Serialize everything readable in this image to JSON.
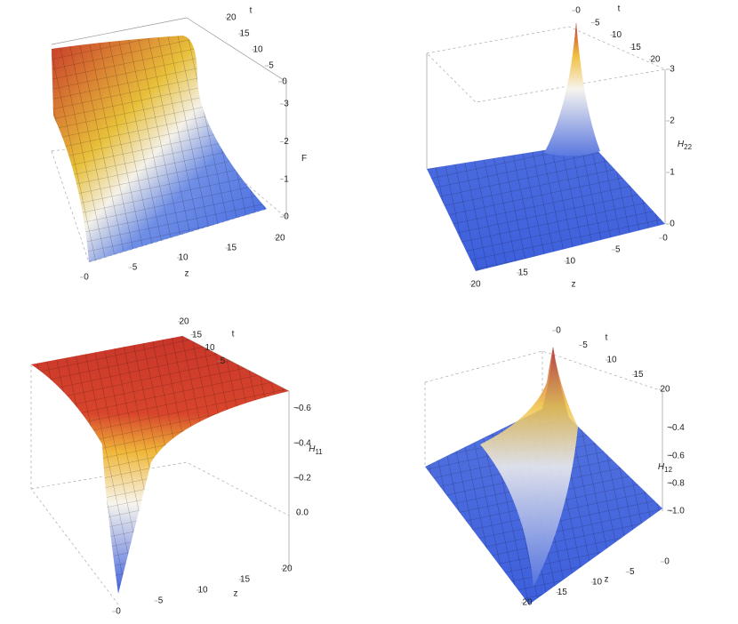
{
  "chart_data": [
    {
      "type": "surface",
      "xlabel": "z",
      "ylabel": "t",
      "zlabel": "F",
      "xlim": [
        0,
        20
      ],
      "xticks": [
        0,
        5,
        10,
        15,
        20
      ],
      "ylim": [
        0,
        20
      ],
      "yticks": [
        0,
        5,
        10,
        15,
        20
      ],
      "zlim": [
        0,
        3
      ],
      "zticks": [
        0,
        1,
        2,
        3
      ]
    },
    {
      "type": "surface",
      "xlabel": "z",
      "ylabel": "t",
      "zlabel": "H",
      "zlabel_sub": "22",
      "xlim": [
        0,
        20
      ],
      "xticks": [
        0,
        5,
        10,
        15,
        20
      ],
      "ylim": [
        0,
        20
      ],
      "yticks": [
        0,
        5,
        10,
        15,
        20
      ],
      "zlim": [
        0,
        3
      ],
      "zticks": [
        0,
        1,
        2,
        3
      ]
    },
    {
      "type": "surface",
      "xlabel": "z",
      "ylabel": "t",
      "zlabel": "H",
      "zlabel_sub": "11",
      "xlim": [
        0,
        20
      ],
      "xticks": [
        0,
        5,
        10,
        15,
        20
      ],
      "ylim": [
        0,
        20
      ],
      "yticks": [
        5,
        10,
        15,
        20
      ],
      "zlim": [
        -0.7,
        0
      ],
      "zticks": [
        {
          "value": 0,
          "label": "0.0"
        },
        {
          "value": -0.2,
          "label": "−0.2"
        },
        {
          "value": -0.4,
          "label": "−0.4"
        },
        {
          "value": -0.6,
          "label": "−0.6"
        }
      ]
    },
    {
      "type": "surface",
      "xlabel": "z",
      "ylabel": "t",
      "zlabel": "H",
      "zlabel_sub": "12",
      "xlim": [
        0,
        20
      ],
      "xticks": [
        0,
        5,
        10,
        15,
        20
      ],
      "ylim": [
        0,
        20
      ],
      "yticks": [
        0,
        5,
        10,
        15,
        20
      ],
      "zlim": [
        -1,
        -0.3
      ],
      "zticks": [
        {
          "value": -0.4,
          "label": "−0.4"
        },
        {
          "value": -0.6,
          "label": "−0.6"
        },
        {
          "value": -0.8,
          "label": "−0.8"
        },
        {
          "value": -1,
          "label": "−1.0"
        }
      ]
    }
  ]
}
